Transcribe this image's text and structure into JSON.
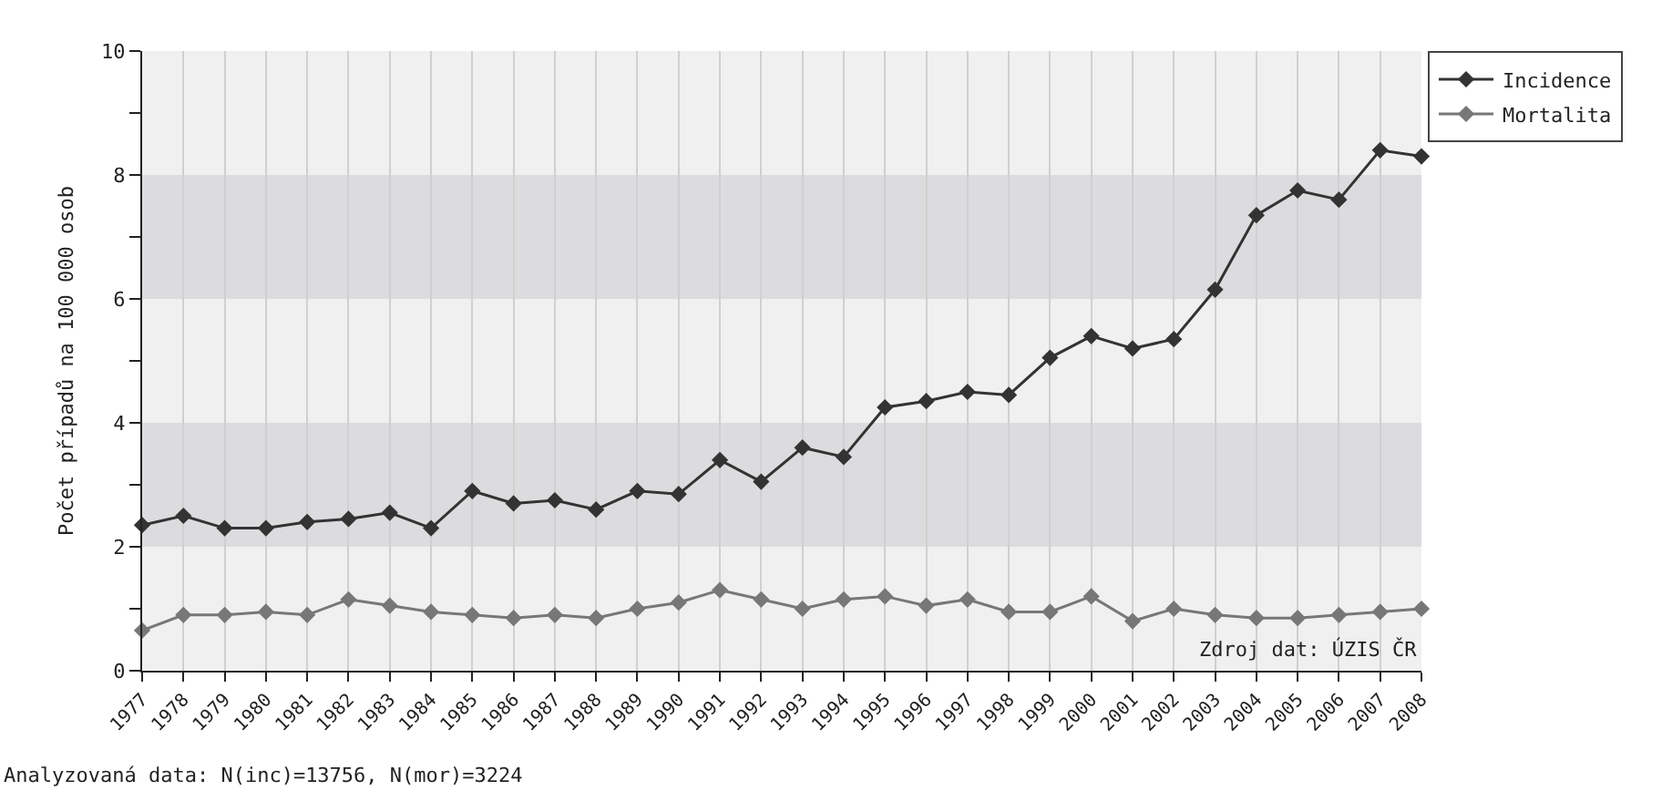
{
  "chart_data": {
    "type": "line",
    "ylabel": "Počet případů na 100 000 osob",
    "categories": [
      "1977",
      "1978",
      "1979",
      "1980",
      "1981",
      "1982",
      "1983",
      "1984",
      "1985",
      "1986",
      "1987",
      "1988",
      "1989",
      "1990",
      "1991",
      "1992",
      "1993",
      "1994",
      "1995",
      "1996",
      "1997",
      "1998",
      "1999",
      "2000",
      "2001",
      "2002",
      "2003",
      "2004",
      "2005",
      "2006",
      "2007",
      "2008"
    ],
    "series": [
      {
        "name": "Incidence",
        "color": "#333333",
        "values": [
          2.35,
          2.5,
          2.3,
          2.3,
          2.4,
          2.45,
          2.55,
          2.3,
          2.9,
          2.7,
          2.75,
          2.6,
          2.9,
          2.85,
          3.4,
          3.05,
          3.6,
          3.45,
          4.25,
          4.35,
          4.5,
          4.45,
          5.05,
          5.4,
          5.2,
          5.35,
          6.15,
          7.35,
          7.75,
          7.6,
          8.4,
          8.3
        ]
      },
      {
        "name": "Mortalita",
        "color": "#777777",
        "values": [
          0.65,
          0.9,
          0.9,
          0.95,
          0.9,
          1.15,
          1.05,
          0.95,
          0.9,
          0.85,
          0.9,
          0.85,
          1.0,
          1.1,
          1.3,
          1.15,
          1.0,
          1.15,
          1.2,
          1.05,
          1.15,
          0.95,
          0.95,
          1.2,
          0.8,
          1.0,
          0.9,
          0.85,
          0.85,
          0.9,
          0.95,
          1.0
        ]
      }
    ],
    "ylim": [
      0,
      10
    ],
    "yticks": [
      0,
      {
        "value": 1,
        "label": null
      },
      2,
      {
        "value": 3,
        "label": null
      },
      4,
      {
        "value": 5,
        "label": null
      },
      6,
      {
        "value": 7,
        "label": null
      },
      8,
      {
        "value": 9,
        "label": null
      },
      10
    ],
    "bands": [
      {
        "axis": "y",
        "from": 2,
        "to": 4,
        "color": "#dcdcdf"
      },
      {
        "axis": "y",
        "from": 6,
        "to": 8,
        "color": "#dcdcdf"
      }
    ],
    "grid": "x",
    "legend": "top right",
    "marker": "diamond",
    "line_style": "solid",
    "annotations": [
      "Zdroj dat: ÚZIS ČR",
      "Analyzovaná data: N(inc)=13756, N(mor)=3224"
    ]
  }
}
